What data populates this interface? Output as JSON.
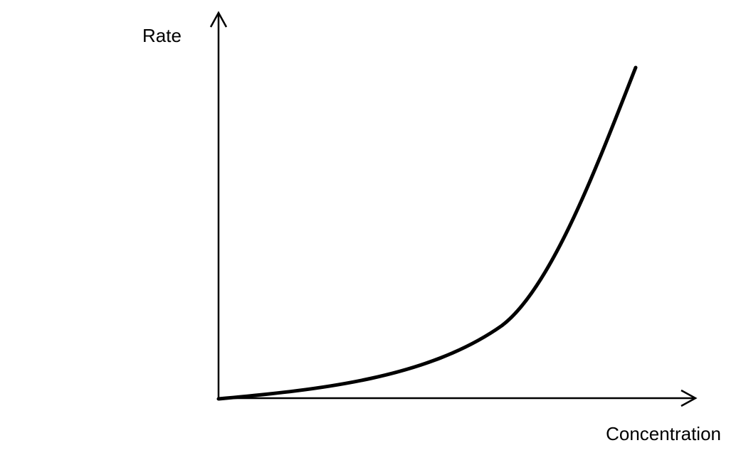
{
  "y_axis_label": "Rate",
  "x_axis_label": "Concentration"
}
